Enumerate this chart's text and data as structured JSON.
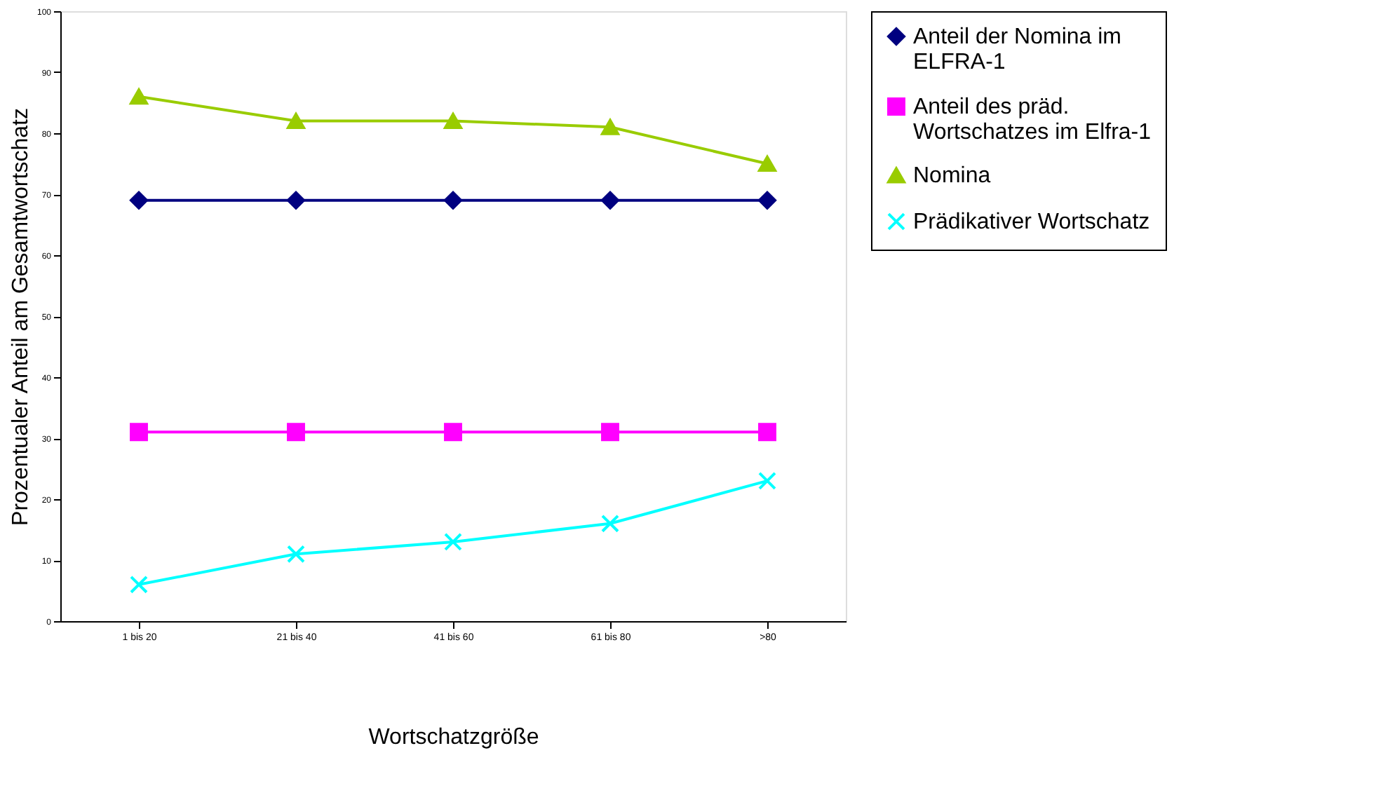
{
  "chart_data": {
    "type": "line",
    "xlabel": "Wortschatzgröße",
    "ylabel": "Prozentualer Anteil am Gesamtwortschatz",
    "categories": [
      "1 bis 20",
      "21 bis 40",
      "41 bis 60",
      "61 bis 80",
      ">80"
    ],
    "series": [
      {
        "name": "Anteil der Nomina im ELFRA-1",
        "color": "#000080",
        "marker": "diamond",
        "values": [
          69,
          69,
          69,
          69,
          69
        ]
      },
      {
        "name": "Anteil des präd. Wortschatzes im Elfra-1",
        "color": "#ff00ff",
        "marker": "square",
        "values": [
          31,
          31,
          31,
          31,
          31
        ]
      },
      {
        "name": "Nomina",
        "color": "#99cc00",
        "marker": "triangle",
        "values": [
          86,
          82,
          82,
          81,
          75
        ]
      },
      {
        "name": "Prädikativer Wortschatz",
        "color": "#00ffff",
        "marker": "cross",
        "values": [
          6,
          11,
          13,
          16,
          23
        ]
      }
    ],
    "ylim": [
      0,
      100
    ],
    "yticks": [
      0,
      10,
      20,
      30,
      40,
      50,
      60,
      70,
      80,
      90,
      100
    ],
    "grid": false,
    "legend": "right",
    "line_style": "solid"
  }
}
